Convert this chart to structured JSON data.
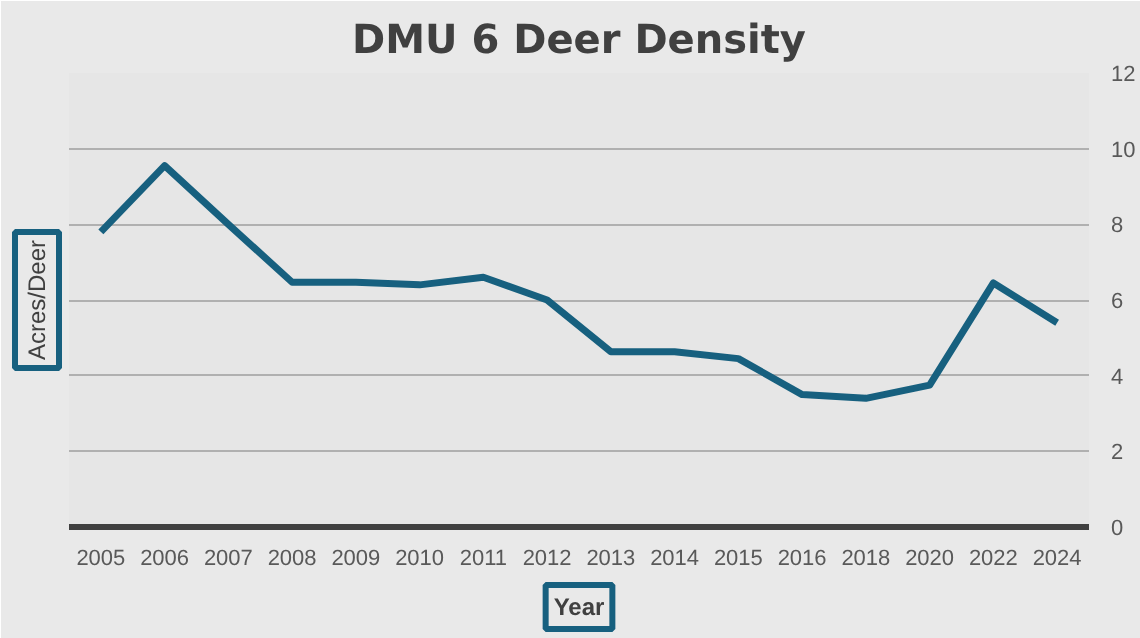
{
  "chart_data": {
    "type": "line",
    "title": "DMU 6 Deer Density",
    "xlabel": "Year",
    "ylabel": "Acres/Deer",
    "categories": [
      "2005",
      "2006",
      "2007",
      "2008",
      "2009",
      "2010",
      "2011",
      "2012",
      "2013",
      "2014",
      "2015",
      "2016",
      "2018",
      "2020",
      "2022",
      "2024"
    ],
    "series": [
      {
        "color": "#17607f",
        "values": [
          7.8,
          9.55,
          8.0,
          6.47,
          6.47,
          6.4,
          6.6,
          6.0,
          4.63,
          4.63,
          4.45,
          3.5,
          3.4,
          3.75,
          6.45,
          5.4
        ]
      }
    ],
    "ylim": [
      0,
      12
    ],
    "yticks": [
      0,
      2,
      4,
      6,
      8,
      10,
      12
    ],
    "grid": "y",
    "line_style": "solid",
    "marker": "none"
  }
}
